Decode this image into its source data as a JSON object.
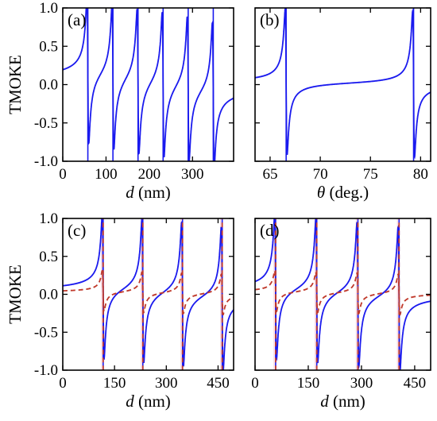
{
  "colors": {
    "blue": "#1a1aee",
    "red_dashed": "#c0392b",
    "pink_guide": "#f6b6c8",
    "frame": "#000000"
  },
  "chart_data": [
    {
      "type": "line",
      "panel": "(a)",
      "xlabel_var": "d",
      "xlabel_unit": " (nm)",
      "ylabel": "TMOKE",
      "xlim": [
        0,
        395
      ],
      "ylim": [
        -1.0,
        1.0
      ],
      "xticks": [
        "0",
        "100",
        "200",
        "300"
      ],
      "xtick_values": [
        0,
        100,
        200,
        300
      ],
      "yticks": [
        "1.0",
        "0.5",
        "0.0",
        "-0.5",
        "-1.0"
      ],
      "ytick_values": [
        1.0,
        0.5,
        0.0,
        -0.5,
        -1.0
      ],
      "resonances": [
        58,
        116,
        174,
        232,
        290,
        348
      ],
      "series": [
        {
          "style": "solid",
          "color": "blue"
        }
      ]
    },
    {
      "type": "line",
      "panel": "(b)",
      "xlabel_var": "θ",
      "xlabel_unit": " (deg.)",
      "ylabel": "",
      "xlim": [
        63.5,
        81
      ],
      "ylim": [
        -1.0,
        1.0
      ],
      "xticks": [
        "65",
        "70",
        "75",
        "80"
      ],
      "xtick_values": [
        65,
        70,
        75,
        80
      ],
      "yticks": [],
      "ytick_values": [
        1.0,
        0.5,
        0.0,
        -0.5,
        -1.0
      ],
      "resonances": [
        66.6,
        79.3
      ],
      "series": [
        {
          "style": "solid",
          "color": "blue"
        }
      ]
    },
    {
      "type": "line",
      "panel": "(c)",
      "xlabel_var": "d",
      "xlabel_unit": " (nm)",
      "ylabel": "TMOKE",
      "xlim": [
        0,
        495
      ],
      "ylim": [
        -1.0,
        1.0
      ],
      "xticks": [
        "0",
        "150",
        "300",
        "450"
      ],
      "xtick_values": [
        0,
        150,
        300,
        450
      ],
      "yticks": [
        "1.0",
        "0.5",
        "0.0",
        "-0.5",
        "-1.0"
      ],
      "ytick_values": [
        1.0,
        0.5,
        0.0,
        -0.5,
        -1.0
      ],
      "resonances": [
        117,
        232,
        347,
        462
      ],
      "series": [
        {
          "style": "solid",
          "color": "blue"
        },
        {
          "style": "dashed",
          "color": "red_dashed"
        }
      ]
    },
    {
      "type": "line",
      "panel": "(d)",
      "xlabel_var": "d",
      "xlabel_unit": " (nm)",
      "ylabel": "",
      "xlim": [
        0,
        495
      ],
      "ylim": [
        -1.0,
        1.0
      ],
      "xticks": [
        "0",
        "150",
        "300",
        "450"
      ],
      "xtick_values": [
        0,
        150,
        300,
        450
      ],
      "yticks": [],
      "ytick_values": [
        1.0,
        0.5,
        0.0,
        -0.5,
        -1.0
      ],
      "resonances": [
        58,
        174,
        290,
        406
      ],
      "series": [
        {
          "style": "solid",
          "color": "blue"
        },
        {
          "style": "dashed",
          "color": "red_dashed"
        }
      ]
    }
  ]
}
